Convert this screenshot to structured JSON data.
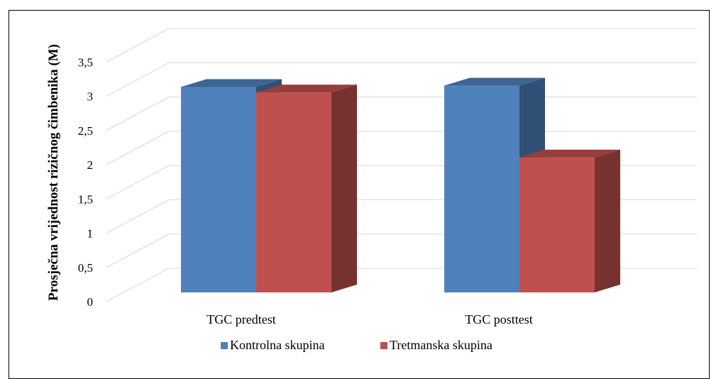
{
  "chart_data": {
    "type": "bar",
    "style": "3d-clustered-column",
    "categories": [
      "TGC predtest",
      "TGC posttest"
    ],
    "series": [
      {
        "name": "Kontrolna skupina",
        "values": [
          3.0,
          3.02
        ],
        "color": "#4F81BD"
      },
      {
        "name": "Tretmanska skupina",
        "values": [
          2.92,
          1.97
        ],
        "color": "#C0504D"
      }
    ],
    "title": "",
    "xlabel": "",
    "ylabel": "Prosječna vrijednost rizičnog čimbenika (M)",
    "ylim": [
      0,
      3.5
    ],
    "yticks": [
      "0",
      "0,5",
      "1",
      "1,5",
      "2",
      "2,5",
      "3",
      "3,5"
    ],
    "grid": true,
    "legend": "bottom"
  }
}
